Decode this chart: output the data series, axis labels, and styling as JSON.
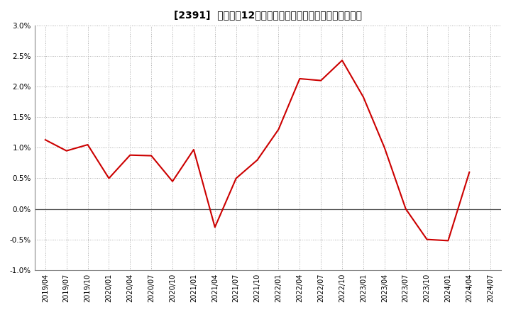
{
  "title": "[2391]  売上高の12か月移動合計の対前年同期増減率の推移",
  "line_color": "#cc0000",
  "background_color": "#ffffff",
  "grid_color": "#aaaaaa",
  "xlabels": [
    "2019/04",
    "2019/07",
    "2019/10",
    "2020/01",
    "2020/04",
    "2020/07",
    "2020/10",
    "2021/01",
    "2021/04",
    "2021/07",
    "2021/10",
    "2022/01",
    "2022/04",
    "2022/07",
    "2022/10",
    "2023/01",
    "2023/04",
    "2023/07",
    "2023/10",
    "2024/01",
    "2024/04",
    "2024/07"
  ],
  "values": [
    0.0113,
    0.0095,
    0.0105,
    0.005,
    0.0088,
    0.0087,
    0.0045,
    0.0097,
    -0.003,
    0.005,
    0.008,
    0.013,
    0.0213,
    0.021,
    0.0243,
    0.0183,
    0.01,
    0.0,
    -0.005,
    -0.0052,
    0.006,
    null
  ],
  "ylim": [
    -0.01,
    0.03
  ],
  "yticks": [
    -0.01,
    -0.005,
    0.0,
    0.005,
    0.01,
    0.015,
    0.02,
    0.025,
    0.03
  ]
}
